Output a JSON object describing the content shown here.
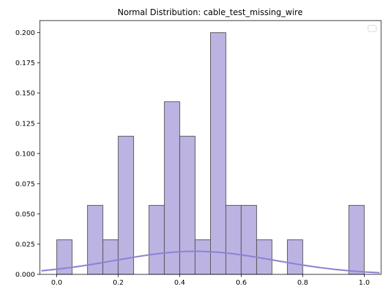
{
  "chart_data": {
    "type": "bar",
    "title": "Normal Distribution: cable_test_missing_wire",
    "xlabel": "",
    "ylabel": "",
    "xlim": [
      -0.055,
      1.055
    ],
    "ylim": [
      0,
      0.21
    ],
    "grid": false,
    "legend": {
      "placement": "top-right",
      "entries": []
    },
    "x_ticks": [
      0.0,
      0.2,
      0.4,
      0.6,
      0.8,
      1.0
    ],
    "x_tick_labels": [
      "0.0",
      "0.2",
      "0.4",
      "0.6",
      "0.8",
      "1.0"
    ],
    "y_ticks": [
      0.0,
      0.025,
      0.05,
      0.075,
      0.1,
      0.125,
      0.15,
      0.175,
      0.2
    ],
    "y_tick_labels": [
      "0.000",
      "0.025",
      "0.050",
      "0.075",
      "0.100",
      "0.125",
      "0.150",
      "0.175",
      "0.200"
    ],
    "histogram": {
      "bins": [
        {
          "x0": 0.0,
          "x1": 0.05,
          "value": 0.0286
        },
        {
          "x0": 0.05,
          "x1": 0.1,
          "value": 0
        },
        {
          "x0": 0.1,
          "x1": 0.15,
          "value": 0.0571
        },
        {
          "x0": 0.15,
          "x1": 0.2,
          "value": 0.0286
        },
        {
          "x0": 0.2,
          "x1": 0.25,
          "value": 0.1143
        },
        {
          "x0": 0.25,
          "x1": 0.3,
          "value": 0
        },
        {
          "x0": 0.3,
          "x1": 0.35,
          "value": 0.0571
        },
        {
          "x0": 0.35,
          "x1": 0.4,
          "value": 0.1429
        },
        {
          "x0": 0.4,
          "x1": 0.45,
          "value": 0.1143
        },
        {
          "x0": 0.45,
          "x1": 0.5,
          "value": 0.0286
        },
        {
          "x0": 0.5,
          "x1": 0.55,
          "value": 0.2
        },
        {
          "x0": 0.55,
          "x1": 0.6,
          "value": 0.0571
        },
        {
          "x0": 0.6,
          "x1": 0.65,
          "value": 0.0571
        },
        {
          "x0": 0.65,
          "x1": 0.7,
          "value": 0.0286
        },
        {
          "x0": 0.7,
          "x1": 0.75,
          "value": 0
        },
        {
          "x0": 0.75,
          "x1": 0.8,
          "value": 0.0286
        },
        {
          "x0": 0.8,
          "x1": 0.85,
          "value": 0
        },
        {
          "x0": 0.85,
          "x1": 0.9,
          "value": 0
        },
        {
          "x0": 0.9,
          "x1": 0.95,
          "value": 0
        },
        {
          "x0": 0.95,
          "x1": 1.0,
          "value": 0.0571
        }
      ],
      "fill_color": "#bcb3e3",
      "edge_color": "#555555"
    },
    "curve": {
      "type": "normal",
      "mean": 0.45,
      "sd": 0.26,
      "scale": 0.0127,
      "x_range": [
        -0.05,
        1.05
      ],
      "color": "#8b84d3"
    }
  }
}
